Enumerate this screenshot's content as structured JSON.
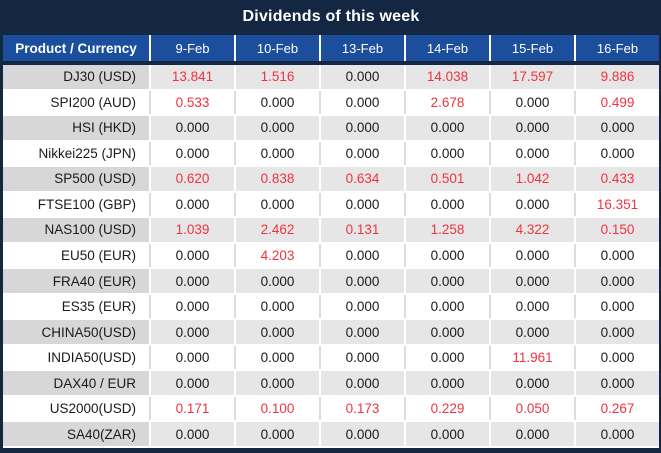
{
  "title": "Dividends of this week",
  "table": {
    "product_header": "Product / Currency",
    "columns": [
      "9-Feb",
      "10-Feb",
      "13-Feb",
      "14-Feb",
      "15-Feb",
      "16-Feb"
    ],
    "rows": [
      {
        "product": "DJ30 (USD)",
        "values": [
          "13.841",
          "1.516",
          "0.000",
          "14.038",
          "17.597",
          "9.886"
        ],
        "red": [
          true,
          true,
          false,
          true,
          true,
          true
        ]
      },
      {
        "product": "SPI200 (AUD)",
        "values": [
          "0.533",
          "0.000",
          "0.000",
          "2.678",
          "0.000",
          "0.499"
        ],
        "red": [
          true,
          false,
          false,
          true,
          false,
          true
        ]
      },
      {
        "product": "HSI (HKD)",
        "values": [
          "0.000",
          "0.000",
          "0.000",
          "0.000",
          "0.000",
          "0.000"
        ],
        "red": [
          false,
          false,
          false,
          false,
          false,
          false
        ]
      },
      {
        "product": "Nikkei225 (JPN)",
        "values": [
          "0.000",
          "0.000",
          "0.000",
          "0.000",
          "0.000",
          "0.000"
        ],
        "red": [
          false,
          false,
          false,
          false,
          false,
          false
        ]
      },
      {
        "product": "SP500 (USD)",
        "values": [
          "0.620",
          "0.838",
          "0.634",
          "0.501",
          "1.042",
          "0.433"
        ],
        "red": [
          true,
          true,
          true,
          true,
          true,
          true
        ]
      },
      {
        "product": "FTSE100 (GBP)",
        "values": [
          "0.000",
          "0.000",
          "0.000",
          "0.000",
          "0.000",
          "16.351"
        ],
        "red": [
          false,
          false,
          false,
          false,
          false,
          true
        ]
      },
      {
        "product": "NAS100 (USD)",
        "values": [
          "1.039",
          "2.462",
          "0.131",
          "1.258",
          "4.322",
          "0.150"
        ],
        "red": [
          true,
          true,
          true,
          true,
          true,
          true
        ]
      },
      {
        "product": "EU50 (EUR)",
        "values": [
          "0.000",
          "4.203",
          "0.000",
          "0.000",
          "0.000",
          "0.000"
        ],
        "red": [
          false,
          true,
          false,
          false,
          false,
          false
        ]
      },
      {
        "product": "FRA40 (EUR)",
        "values": [
          "0.000",
          "0.000",
          "0.000",
          "0.000",
          "0.000",
          "0.000"
        ],
        "red": [
          false,
          false,
          false,
          false,
          false,
          false
        ]
      },
      {
        "product": "ES35 (EUR)",
        "values": [
          "0.000",
          "0.000",
          "0.000",
          "0.000",
          "0.000",
          "0.000"
        ],
        "red": [
          false,
          false,
          false,
          false,
          false,
          false
        ]
      },
      {
        "product": "CHINA50(USD)",
        "values": [
          "0.000",
          "0.000",
          "0.000",
          "0.000",
          "0.000",
          "0.000"
        ],
        "red": [
          false,
          false,
          false,
          false,
          false,
          false
        ]
      },
      {
        "product": "INDIA50(USD)",
        "values": [
          "0.000",
          "0.000",
          "0.000",
          "0.000",
          "11.961",
          "0.000"
        ],
        "red": [
          false,
          false,
          false,
          false,
          true,
          false
        ]
      },
      {
        "product": "DAX40 / EUR",
        "values": [
          "0.000",
          "0.000",
          "0.000",
          "0.000",
          "0.000",
          "0.000"
        ],
        "red": [
          false,
          false,
          false,
          false,
          false,
          false
        ]
      },
      {
        "product": "US2000(USD)",
        "values": [
          "0.171",
          "0.100",
          "0.173",
          "0.229",
          "0.050",
          "0.267"
        ],
        "red": [
          true,
          true,
          true,
          true,
          true,
          true
        ]
      },
      {
        "product": "SA40(ZAR)",
        "values": [
          "0.000",
          "0.000",
          "0.000",
          "0.000",
          "0.000",
          "0.000"
        ],
        "red": [
          false,
          false,
          false,
          false,
          false,
          false
        ]
      }
    ]
  },
  "colors": {
    "navy": "#132642",
    "header_blue": "#1C4E9E",
    "highlight_red": "#EF3340",
    "row_gray": "#E6E6E6",
    "product_col_gray": "#D7D7D7",
    "text_black": "#1A1A1A",
    "white": "#FFFFFF"
  }
}
